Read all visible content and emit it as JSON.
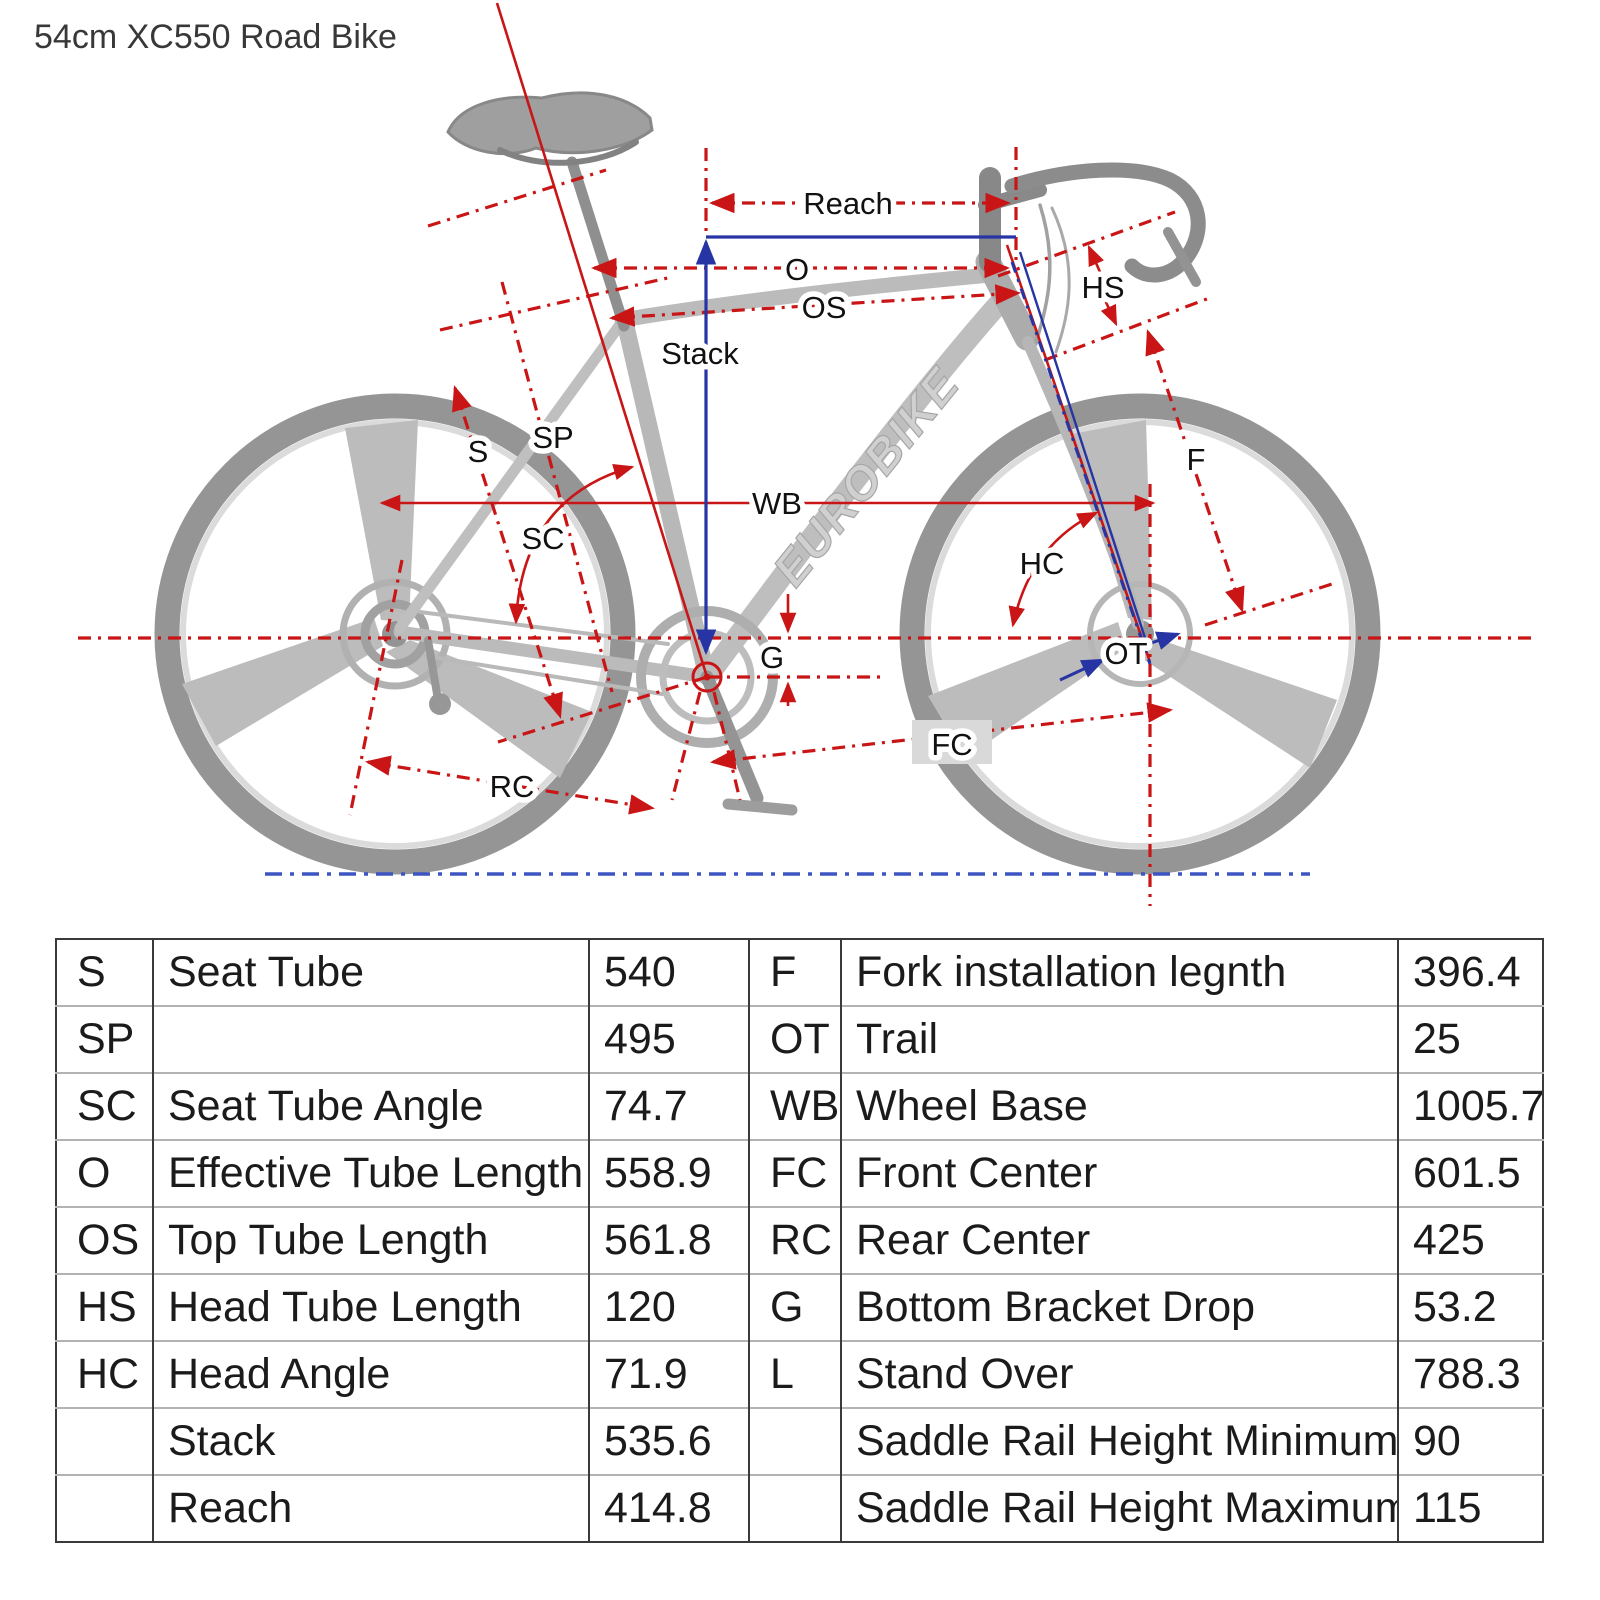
{
  "title": "54cm XC550 Road Bike",
  "diagram": {
    "brand": "EUROBIKE",
    "labels": {
      "reach": "Reach",
      "o": "O",
      "os": "OS",
      "stack": "Stack",
      "hs": "HS",
      "s": "S",
      "sp": "SP",
      "sc": "SC",
      "wb": "WB",
      "f": "F",
      "hc": "HC",
      "g": "G",
      "ot": "OT",
      "fc": "FC",
      "rc": "RC"
    },
    "colors": {
      "measurement_red": "#c91515",
      "axis_blue": "#2634a4",
      "ground_blue": "#3d55c0",
      "bike_gray": "#b3b3b3"
    }
  },
  "table": {
    "rows": [
      {
        "c1": "S",
        "c2": "Seat Tube",
        "c3": "540",
        "c4": "F",
        "c5": "Fork installation legnth",
        "c6": "396.4"
      },
      {
        "c1": "SP",
        "c2": "",
        "c3": "495",
        "c4": "OT",
        "c5": "Trail",
        "c6": "25"
      },
      {
        "c1": "SC",
        "c2": "Seat Tube Angle",
        "c3": "74.7",
        "c4": "WB",
        "c5": "Wheel Base",
        "c6": "1005.7"
      },
      {
        "c1": "O",
        "c2": "Effective Tube Length",
        "c3": "558.9",
        "c4": "FC",
        "c5": "Front Center",
        "c6": "601.5"
      },
      {
        "c1": "OS",
        "c2": "Top Tube Length",
        "c3": "561.8",
        "c4": "RC",
        "c5": "Rear Center",
        "c6": "425"
      },
      {
        "c1": "HS",
        "c2": "Head Tube Length",
        "c3": "120",
        "c4": "G",
        "c5": "Bottom Bracket Drop",
        "c6": "53.2"
      },
      {
        "c1": "HC",
        "c2": "Head Angle",
        "c3": "71.9",
        "c4": "L",
        "c5": "Stand Over",
        "c6": "788.3"
      },
      {
        "c1": "",
        "c2": "Stack",
        "c3": "535.6",
        "c4": "",
        "c5": "Saddle Rail Height Minimum",
        "c6": "90"
      },
      {
        "c1": "",
        "c2": "Reach",
        "c3": "414.8",
        "c4": "",
        "c5": "Saddle Rail Height Maximum",
        "c6": "115"
      }
    ]
  }
}
